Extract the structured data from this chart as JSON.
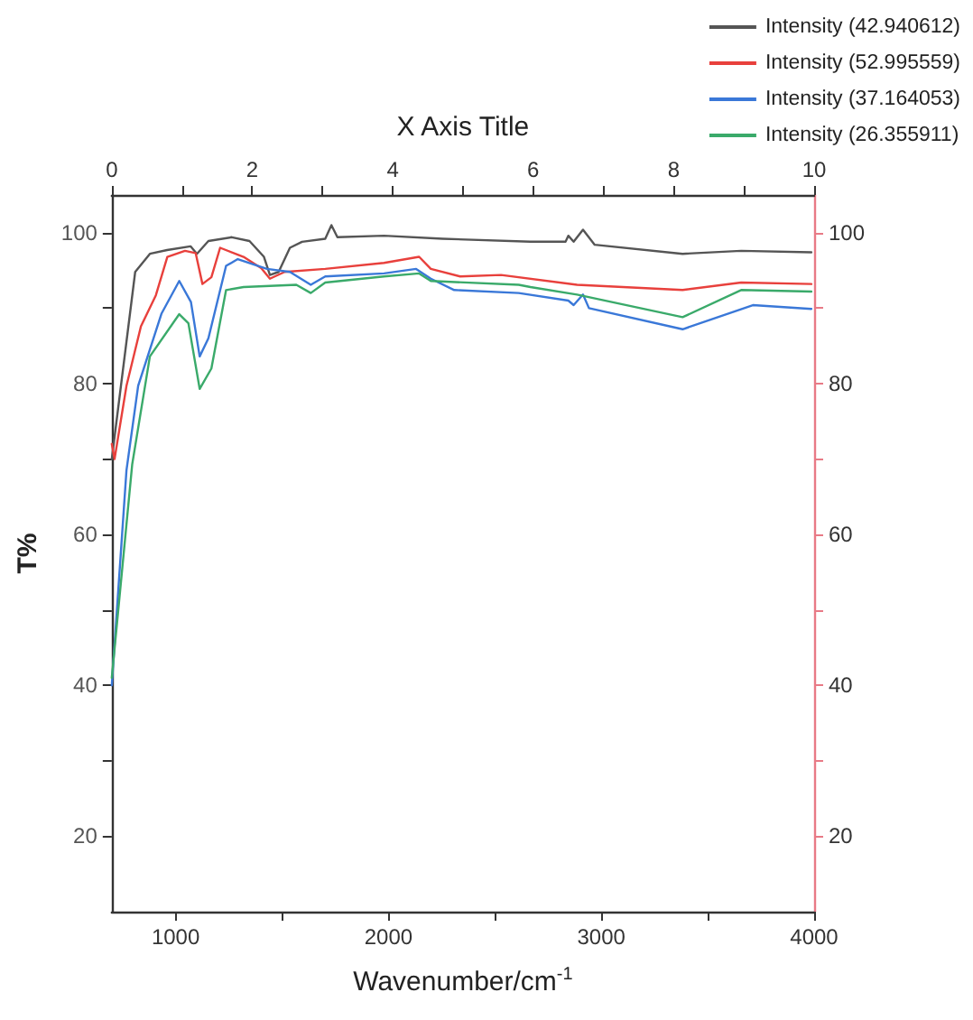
{
  "chart_data": {
    "type": "line",
    "xlabel": "Wavenumber/cm$^{-1}$",
    "ylabel": "T%",
    "x2label": "X Axis Title",
    "xlim": [
      700,
      4000
    ],
    "xticks": [
      1000,
      {
        "value": 1500,
        "label": null
      },
      2000,
      {
        "value": 2500,
        "label": null
      },
      3000,
      {
        "value": 3500,
        "label": null
      },
      4000
    ],
    "ylim": [
      10,
      105
    ],
    "yticks": [
      20,
      {
        "value": 30,
        "label": null
      },
      40,
      {
        "value": 50,
        "label": null
      },
      60,
      {
        "value": 70,
        "label": null
      },
      80,
      {
        "value": 90,
        "label": null
      },
      100
    ],
    "y2lim": [
      10,
      105
    ],
    "y2ticks": [
      20,
      {
        "value": 30,
        "label": null
      },
      40,
      {
        "value": 50,
        "label": null
      },
      60,
      {
        "value": 70,
        "label": null
      },
      80,
      {
        "value": 90,
        "label": null
      },
      100
    ],
    "x2lim": [
      0,
      10
    ],
    "x2ticks": [
      0,
      {
        "value": 1,
        "label": null
      },
      2,
      {
        "value": 3,
        "label": null
      },
      4,
      {
        "value": 5,
        "label": null
      },
      6,
      {
        "value": 7,
        "label": null
      },
      8,
      {
        "value": 9,
        "label": null
      },
      10
    ],
    "grid": false,
    "legend": "top right",
    "marker": "none",
    "line_style": "solid",
    "series": [
      {
        "name": "Intensity (42.940612)",
        "color": "#555555",
        "x": [
          700,
          810,
          879,
          960,
          1070,
          1100,
          1154,
          1264,
          1347,
          1415,
          1443,
          1484,
          1537,
          1594,
          1703,
          1732,
          1760,
          1979,
          2254,
          2667,
          2832,
          2845,
          2870,
          2914,
          2969,
          3382,
          3657,
          3987
        ],
        "values": [
          70,
          94.8,
          97.2,
          97.7,
          98.2,
          97.2,
          98.9,
          99.4,
          98.9,
          96.8,
          94.4,
          94.8,
          98,
          98.8,
          99.2,
          101,
          99.4,
          99.6,
          99.2,
          98.8,
          98.8,
          99.6,
          98.8,
          100.4,
          98.4,
          97.2,
          97.6,
          97.4
        ]
      },
      {
        "name": "Intensity (52.995559)",
        "color": "#e8403c",
        "x": [
          700,
          713,
          769,
          837,
          907,
          961,
          1044,
          1094,
          1126,
          1168,
          1209,
          1319,
          1402,
          1443,
          1512,
          1703,
          1979,
          2144,
          2199,
          2337,
          2529,
          2886,
          3382,
          3657,
          3987
        ],
        "values": [
          72,
          70,
          79.7,
          87.6,
          91.7,
          96.8,
          97.6,
          97.3,
          93.2,
          94.1,
          98,
          96.8,
          95.3,
          93.9,
          94.8,
          95.2,
          96,
          96.8,
          95.2,
          94.2,
          94.4,
          93.1,
          92.4,
          93.4,
          93.2
        ]
      },
      {
        "name": "Intensity (37.164053)",
        "color": "#3a78d8",
        "x": [
          700,
          769,
          824,
          934,
          1017,
          1072,
          1113,
          1154,
          1237,
          1292,
          1429,
          1537,
          1635,
          1703,
          1979,
          2130,
          2199,
          2309,
          2612,
          2845,
          2870,
          2914,
          2942,
          3382,
          3712,
          3987
        ],
        "values": [
          40,
          68.5,
          79.7,
          89.3,
          93.6,
          90.8,
          83.6,
          86,
          95.6,
          96.5,
          95.2,
          94.8,
          93.1,
          94.2,
          94.6,
          95.2,
          93.9,
          92.4,
          92,
          91,
          90.4,
          91.8,
          90,
          87.2,
          90.4,
          89.9
        ]
      },
      {
        "name": "Intensity (26.355911)",
        "color": "#3aaa6a",
        "x": [
          700,
          796,
          879,
          1017,
          1060,
          1113,
          1168,
          1237,
          1319,
          1567,
          1635,
          1703,
          1979,
          2144,
          2199,
          2612,
          2667,
          2886,
          3382,
          3657,
          3987
        ],
        "values": [
          41,
          69.3,
          83.6,
          89.2,
          88,
          79.3,
          82,
          92.4,
          92.8,
          93.1,
          92,
          93.4,
          94.2,
          94.6,
          93.6,
          93.1,
          92.8,
          91.8,
          88.8,
          92.4,
          92.2
        ]
      }
    ]
  }
}
